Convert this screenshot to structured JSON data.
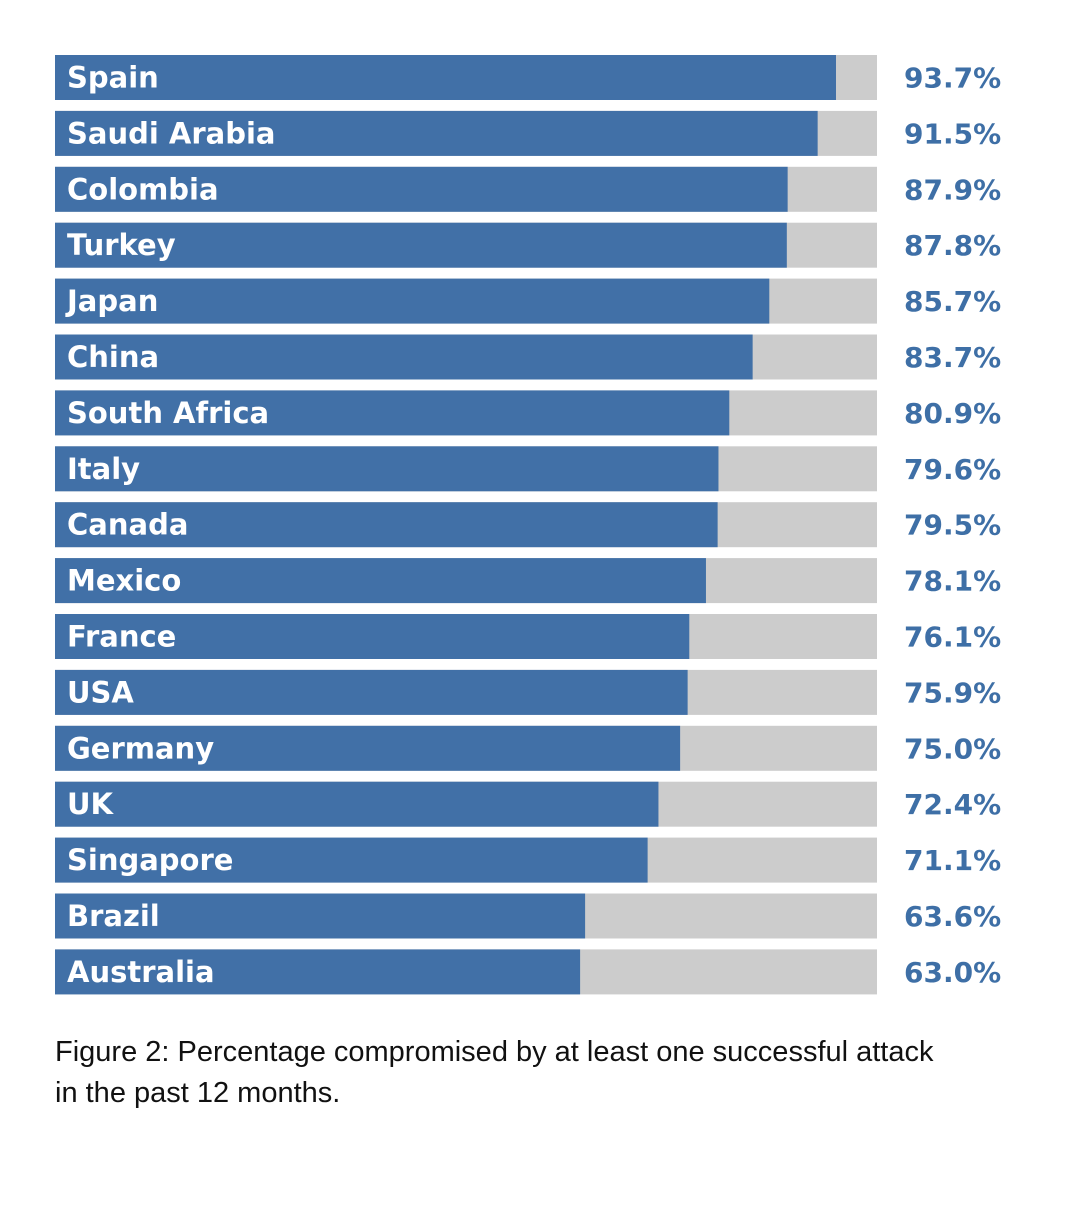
{
  "caption": "Figure 2: Percentage compromised by at least one successful attack in the past 12 months.",
  "colors": {
    "bar": "#4170a7",
    "track": "#cccccc",
    "value_text": "#3e6fa6",
    "bar_text": "#ffffff"
  },
  "chart_data": {
    "type": "bar",
    "orientation": "horizontal",
    "categories": [
      "Spain",
      "Saudi Arabia",
      "Colombia",
      "Turkey",
      "Japan",
      "China",
      "South Africa",
      "Italy",
      "Canada",
      "Mexico",
      "France",
      "USA",
      "Germany",
      "UK",
      "Singapore",
      "Brazil",
      "Australia"
    ],
    "values": [
      93.7,
      91.5,
      87.9,
      87.8,
      85.7,
      83.7,
      80.9,
      79.6,
      79.5,
      78.1,
      76.1,
      75.9,
      75.0,
      72.4,
      71.1,
      63.6,
      63.0
    ],
    "value_labels": [
      "93.7%",
      "91.5%",
      "87.9%",
      "87.8%",
      "85.7%",
      "83.7%",
      "80.9%",
      "79.6%",
      "79.5%",
      "78.1%",
      "76.1%",
      "75.9%",
      "75.0%",
      "72.4%",
      "71.1%",
      "63.6%",
      "63.0%"
    ],
    "xlim": [
      0,
      100
    ],
    "grid": false,
    "legend": "none"
  }
}
